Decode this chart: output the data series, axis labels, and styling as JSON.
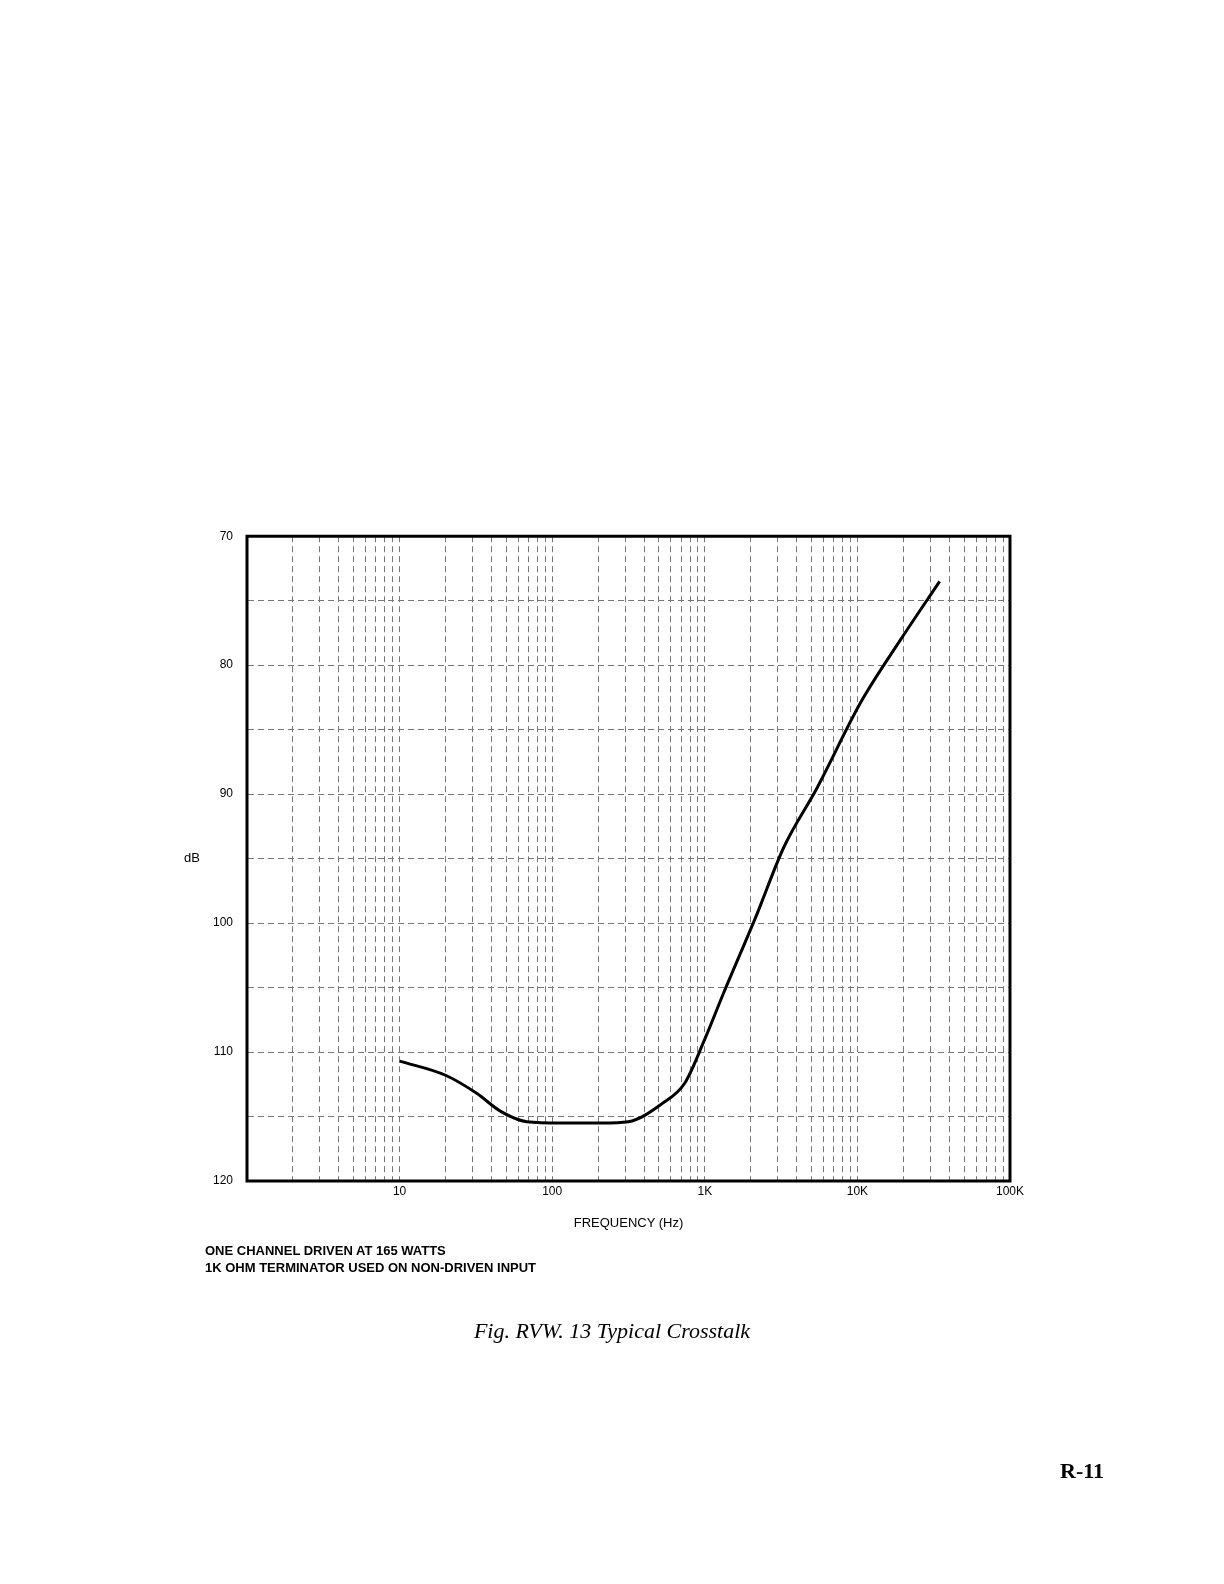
{
  "chart_data": {
    "type": "line",
    "title": "Fig. RVW. 13 Typical Crosstalk",
    "xlabel": "FREQUENCY (Hz)",
    "ylabel": "dB",
    "log": "x",
    "grid": true,
    "legend": false,
    "marker": "none",
    "line_style": "solid",
    "xlim": [
      1,
      100000
    ],
    "ylim": [
      120,
      70
    ],
    "xticks": [
      {
        "value": 2,
        "label": null
      },
      {
        "value": 3,
        "label": null
      },
      {
        "value": 4,
        "label": null
      },
      {
        "value": 5,
        "label": null
      },
      {
        "value": 6,
        "label": null
      },
      {
        "value": 7,
        "label": null
      },
      {
        "value": 8,
        "label": null
      },
      {
        "value": 9,
        "label": null
      },
      10,
      {
        "value": 20,
        "label": null
      },
      {
        "value": 30,
        "label": null
      },
      {
        "value": 40,
        "label": null
      },
      {
        "value": 50,
        "label": null
      },
      {
        "value": 60,
        "label": null
      },
      {
        "value": 70,
        "label": null
      },
      {
        "value": 80,
        "label": null
      },
      {
        "value": 90,
        "label": null
      },
      100,
      {
        "value": 200,
        "label": null
      },
      {
        "value": 300,
        "label": null
      },
      {
        "value": 400,
        "label": null
      },
      {
        "value": 500,
        "label": null
      },
      {
        "value": 600,
        "label": null
      },
      {
        "value": 700,
        "label": null
      },
      {
        "value": 800,
        "label": null
      },
      {
        "value": 900,
        "label": null
      },
      {
        "value": 1000,
        "label": "1K"
      },
      {
        "value": 2000,
        "label": null
      },
      {
        "value": 3000,
        "label": null
      },
      {
        "value": 4000,
        "label": null
      },
      {
        "value": 5000,
        "label": null
      },
      {
        "value": 6000,
        "label": null
      },
      {
        "value": 7000,
        "label": null
      },
      {
        "value": 8000,
        "label": null
      },
      {
        "value": 9000,
        "label": null
      },
      {
        "value": 10000,
        "label": "10K"
      },
      {
        "value": 20000,
        "label": null
      },
      {
        "value": 30000,
        "label": null
      },
      {
        "value": 40000,
        "label": null
      },
      {
        "value": 50000,
        "label": null
      },
      {
        "value": 60000,
        "label": null
      },
      {
        "value": 70000,
        "label": null
      },
      {
        "value": 80000,
        "label": null
      },
      {
        "value": 90000,
        "label": null
      },
      {
        "value": 100000,
        "label": "100K"
      }
    ],
    "yticks": [
      70,
      {
        "value": 75,
        "label": null
      },
      80,
      {
        "value": 85,
        "label": null
      },
      90,
      {
        "value": 95,
        "label": null
      },
      100,
      {
        "value": 105,
        "label": null
      },
      110,
      {
        "value": 115,
        "label": null
      },
      120
    ],
    "series": [
      {
        "color": "#000000",
        "x": [
          10,
          20,
          32,
          46,
          68,
          115,
          210,
          315,
          525,
          740,
          1000,
          1320,
          2180,
          3300,
          5450,
          10500,
          19000,
          34600
        ],
        "values": [
          110.7,
          111.8,
          113.2,
          114.6,
          115.4,
          115.5,
          115.5,
          115.4,
          114.0,
          112.4,
          109.0,
          105.5,
          99.4,
          94.1,
          89.5,
          82.9,
          78.1,
          73.5
        ]
      }
    ],
    "annotations": [
      "ONE CHANNEL DRIVEN AT 165 WATTS",
      "1K OHM TERMINATOR USED ON NON-DRIVEN INPUT",
      "R-11"
    ]
  }
}
